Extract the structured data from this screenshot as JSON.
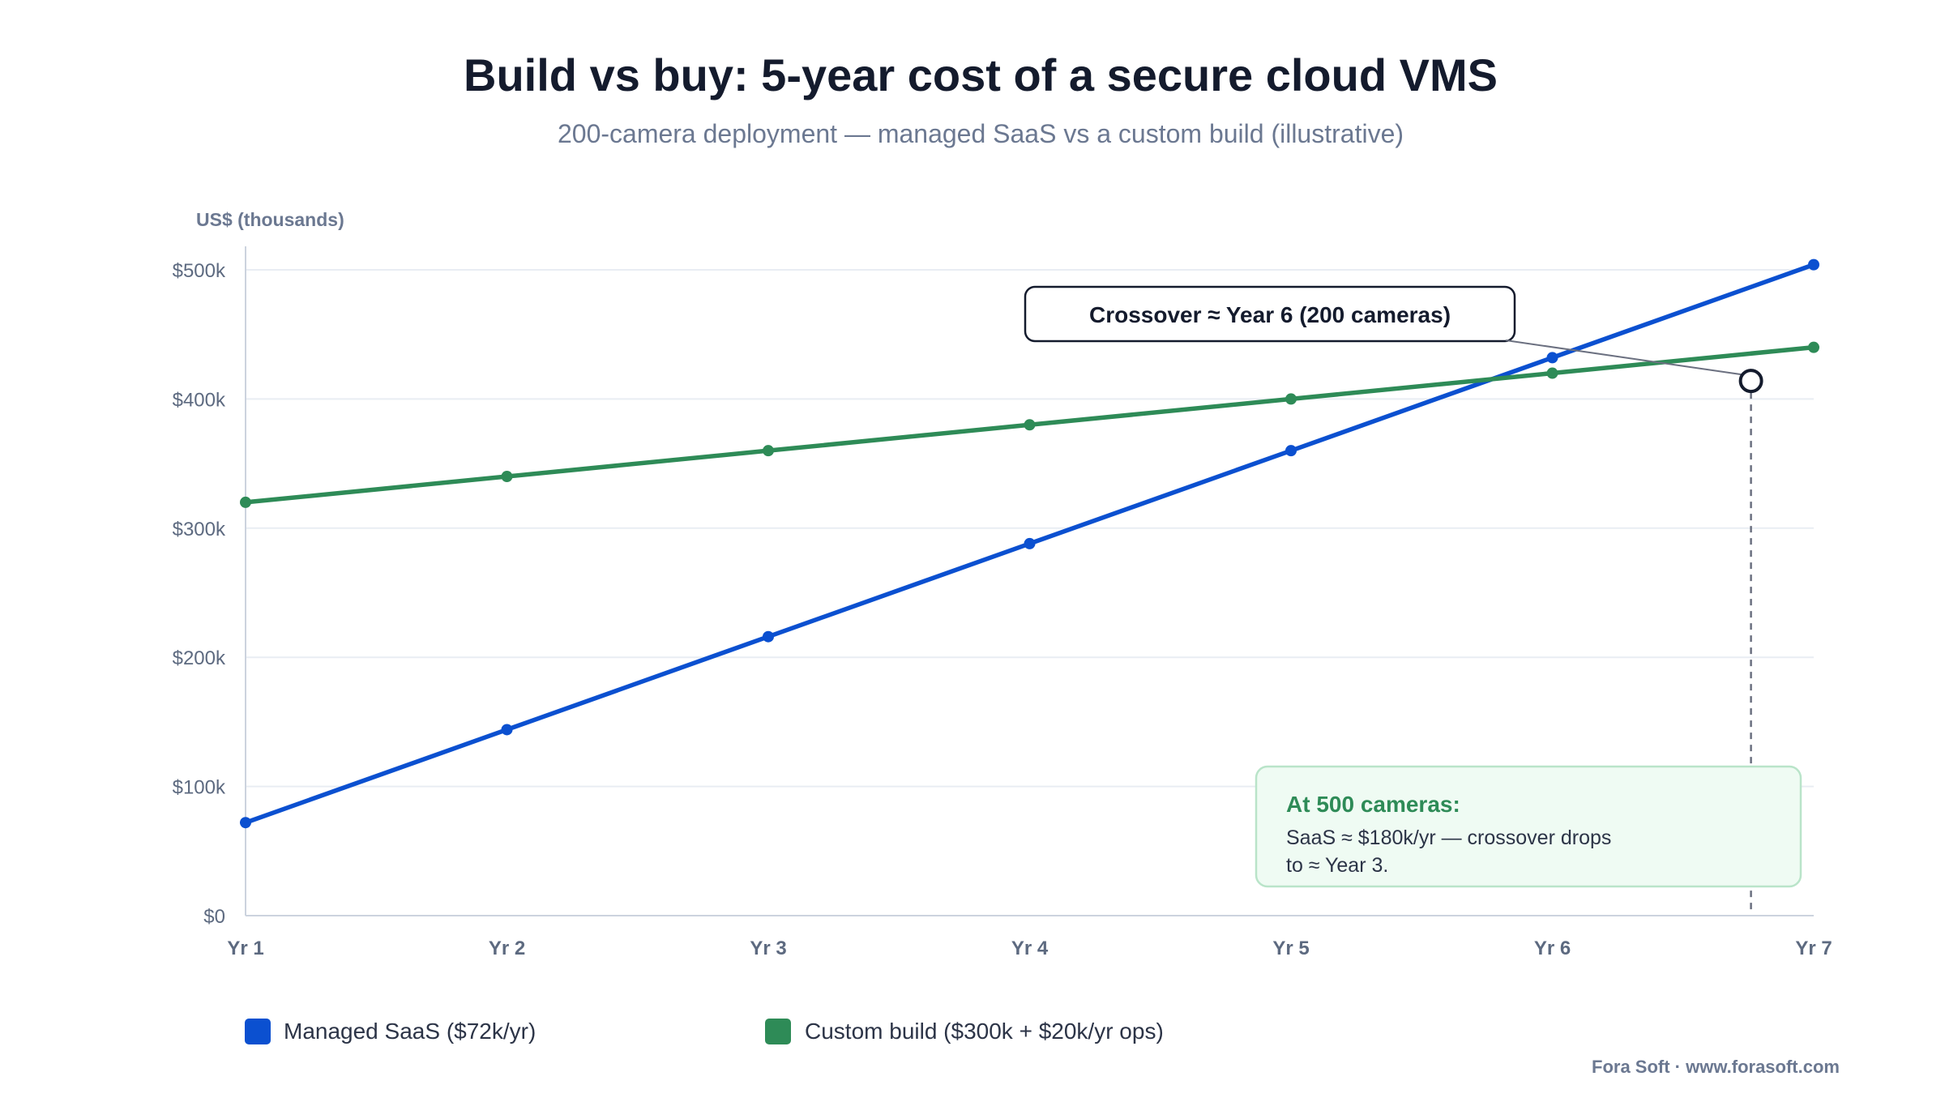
{
  "chart_data": {
    "type": "line",
    "title": "Build vs buy: 5-year cost of a secure cloud VMS",
    "subtitle": "200-camera deployment — managed SaaS vs a custom build (illustrative)",
    "ylabel": "US$ (thousands)",
    "categories": [
      "Yr 1",
      "Yr 2",
      "Yr 3",
      "Yr 4",
      "Yr 5",
      "Yr 6",
      "Yr 7"
    ],
    "ylim": [
      0,
      500
    ],
    "yticks": [
      0,
      100,
      200,
      300,
      400,
      500
    ],
    "ytick_labels": [
      "$0",
      "$100k",
      "$200k",
      "$300k",
      "$400k",
      "$500k"
    ],
    "grid": true,
    "legend_position": "bottom-left",
    "series": [
      {
        "name": "Managed SaaS ($72k/yr)",
        "color": "#0b50d0",
        "values": [
          72,
          144,
          216,
          288,
          360,
          432,
          504
        ]
      },
      {
        "name": "Custom build ($300k + $20k/yr ops)",
        "color": "#2e8b57",
        "values": [
          320,
          340,
          360,
          380,
          400,
          420,
          440
        ]
      }
    ],
    "crossover": {
      "x": 5.76,
      "y": 414,
      "label": "Crossover ≈ Year 6 (200 cameras)"
    },
    "note": {
      "heading": "At 500 cameras:",
      "lines": [
        "SaaS ≈ $180k/yr — crossover drops",
        "to ≈ Year 3."
      ]
    }
  },
  "footer": "Fora Soft · www.forasoft.com",
  "colors": {
    "text_dark": "#141b2d",
    "text_muted": "#6b7891",
    "grid": "#e9edf3",
    "axis": "#ccd3de",
    "note_bg": "#effbf3",
    "note_border": "#b9e4c9"
  }
}
